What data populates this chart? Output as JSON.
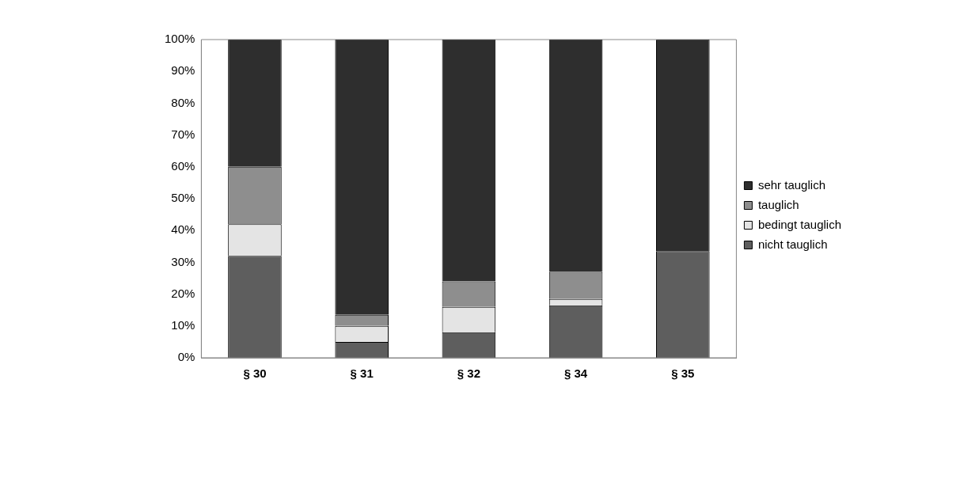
{
  "chart_data": {
    "type": "bar",
    "stacked": true,
    "categories": [
      "§ 30",
      "§ 31",
      "§ 32",
      "§ 34",
      "§ 35"
    ],
    "series": [
      {
        "name": "nicht tauglich",
        "color": "#5e5e5e",
        "values": [
          32,
          5,
          8,
          16.5,
          33.5
        ]
      },
      {
        "name": "bedingt tauglich",
        "color": "#e4e4e4",
        "values": [
          10,
          5,
          8,
          2,
          0
        ]
      },
      {
        "name": "tauglich",
        "color": "#8e8e8e",
        "values": [
          18,
          3.5,
          8,
          8.5,
          0
        ]
      },
      {
        "name": "sehr tauglich",
        "color": "#2e2e2e",
        "values": [
          40,
          86.5,
          76,
          73,
          66.5
        ]
      }
    ],
    "ylim": [
      0,
      100
    ],
    "yticks": [
      {
        "value": 0,
        "label": "0%"
      },
      {
        "value": 10,
        "label": "10%"
      },
      {
        "value": 20,
        "label": "20%"
      },
      {
        "value": 30,
        "label": "30%"
      },
      {
        "value": 40,
        "label": "40%"
      },
      {
        "value": 50,
        "label": "50%"
      },
      {
        "value": 60,
        "label": "60%"
      },
      {
        "value": 70,
        "label": "70%"
      },
      {
        "value": 80,
        "label": "80%"
      },
      {
        "value": 90,
        "label": "90%"
      },
      {
        "value": 100,
        "label": "100%"
      }
    ],
    "grid": false,
    "legend": "right"
  }
}
